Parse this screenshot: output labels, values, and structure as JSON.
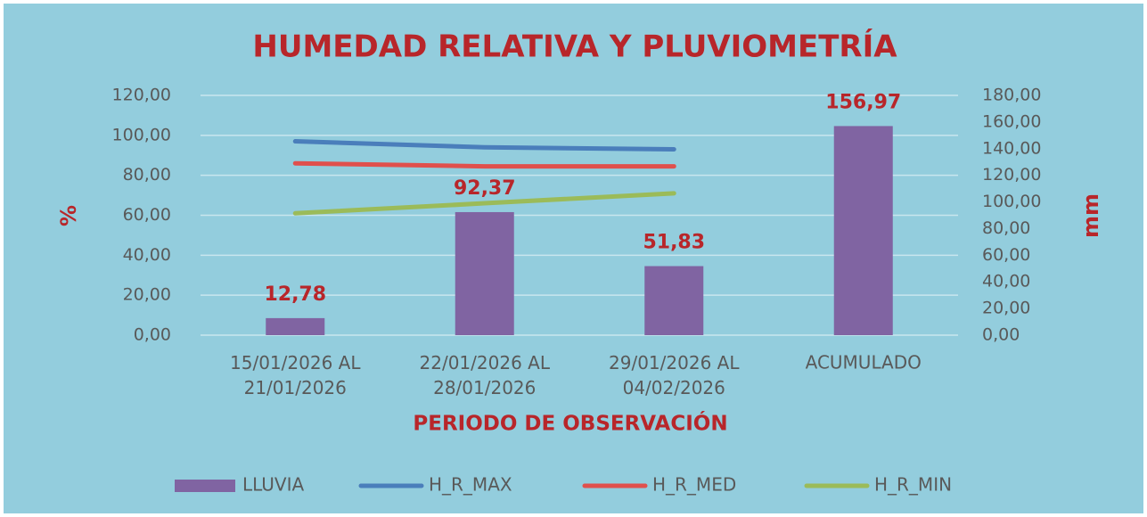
{
  "chart_data": {
    "type": "bar_line",
    "title": "HUMEDAD RELATIVA Y PLUVIOMETRÍA",
    "ylabel": "%",
    "y2label": "mm",
    "xlabel": "PERIODO DE OBSERVACIÓN",
    "categories": [
      "15/01/2026 AL 21/01/2026",
      "22/01/2026 AL 28/01/2026",
      "29/01/2026 AL 04/02/2026",
      "ACUMULADO"
    ],
    "series": [
      {
        "name": "LLUVIA",
        "type": "bar",
        "axis": "y2",
        "color": "#8064a2",
        "values": [
          12.78,
          92.37,
          51.83,
          156.97
        ],
        "value_labels": [
          "12,78",
          "92,37",
          "51,83",
          "156,97"
        ]
      },
      {
        "name": "H_R_MAX",
        "type": "line",
        "color": "#4a7ebb",
        "values": [
          97,
          94,
          93,
          null
        ]
      },
      {
        "name": "H_R_MED",
        "type": "line",
        "color": "#e0504d",
        "values": [
          86,
          84.5,
          84.5,
          null
        ]
      },
      {
        "name": "H_R_MIN",
        "type": "line",
        "color": "#9bbb59",
        "values": [
          61,
          66,
          71,
          null
        ]
      }
    ],
    "ylim": [
      0,
      120
    ],
    "yticks": [
      {
        "value": 0,
        "label": "0,00"
      },
      {
        "value": 20,
        "label": "20,00"
      },
      {
        "value": 40,
        "label": "40,00"
      },
      {
        "value": 60,
        "label": "60,00"
      },
      {
        "value": 80,
        "label": "80,00"
      },
      {
        "value": 100,
        "label": "100,00"
      },
      {
        "value": 120,
        "label": "120,00"
      }
    ],
    "y2lim": [
      0,
      180
    ],
    "y2ticks": [
      {
        "value": 0,
        "label": "0,00"
      },
      {
        "value": 20,
        "label": "20,00"
      },
      {
        "value": 40,
        "label": "40,00"
      },
      {
        "value": 60,
        "label": "60,00"
      },
      {
        "value": 80,
        "label": "80,00"
      },
      {
        "value": 100,
        "label": "100,00"
      },
      {
        "value": 120,
        "label": "120,00"
      },
      {
        "value": 140,
        "label": "140,00"
      },
      {
        "value": 160,
        "label": "160,00"
      },
      {
        "value": 180,
        "label": "180,00"
      }
    ],
    "grid": true,
    "legend": "bottom"
  }
}
